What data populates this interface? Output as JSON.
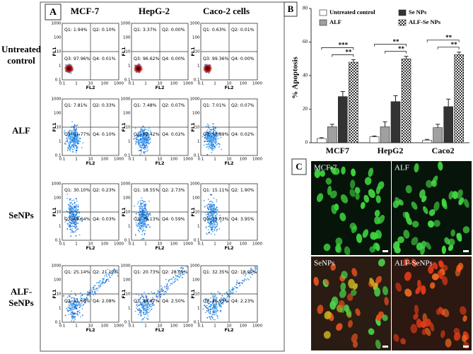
{
  "panel_labels": [
    "A",
    "B",
    "C"
  ],
  "panel_a": {
    "columns": [
      "MCF-7",
      "HepG-2",
      "Caco-2 cells"
    ],
    "x_label": "FL2",
    "y_label": "FL1",
    "axis_ticks": [
      "0.1",
      "1",
      "10",
      "100",
      "1000"
    ],
    "rows": [
      {
        "label": "Untreated control",
        "plots": [
          {
            "q1": "Q1: 1.94%",
            "q2": "Q2: 0.10%",
            "q3": "Q3: 97.96%",
            "q4": "Q4: 0.01%"
          },
          {
            "q1": "Q1: 3.37%",
            "q2": "Q2: 0.00%",
            "q3": "Q3: 96.62%",
            "q4": "Q4: 0.00%"
          },
          {
            "q1": "Q1: 0.63%",
            "q2": "Q2: 0.01%",
            "q3": "Q3: 99.36%",
            "q4": "Q4: 0.00%"
          }
        ]
      },
      {
        "label": "ALF",
        "plots": [
          {
            "q1": "Q1: 7.81%",
            "q2": "Q2: 0.33%",
            "q3": "Q3: 91.77%",
            "q4": "Q4: 0.10%"
          },
          {
            "q1": "Q1: 7.48%",
            "q2": "Q2: 0.07%",
            "q3": "Q3: 92.42%",
            "q4": "Q4: 0.02%"
          },
          {
            "q1": "Q1: 7.01%",
            "q2": "Q2: 0.07%",
            "q3": "Q3: 92.89%",
            "q4": "Q4: 0.02%"
          }
        ]
      },
      {
        "label": "SeNPs",
        "plots": [
          {
            "q1": "Q1: 30.10%",
            "q2": "Q2: 0.23%",
            "q3": "Q3: 69.64%",
            "q4": "Q4: 0.03%"
          },
          {
            "q1": "Q1: 18.55%",
            "q2": "Q2: 2.73%",
            "q3": "Q3: 78.13%",
            "q4": "Q4: 0.59%"
          },
          {
            "q1": "Q1: 15.11%",
            "q2": "Q2: 1.90%",
            "q3": "Q3: 79.03%",
            "q4": "Q4: 3.95%"
          }
        ]
      },
      {
        "label": "ALF-SeNPs",
        "plots": [
          {
            "q1": "Q1: 25.14%",
            "q2": "Q2: 21.12%",
            "q3": "Q3: 51.66%",
            "q4": "Q4: 2.08%"
          },
          {
            "q1": "Q1: 20.73%",
            "q2": "Q2: 28.09%",
            "q3": "Q3: 48.67%",
            "q4": "Q4: 2.50%"
          },
          {
            "q1": "Q1: 32.35%",
            "q2": "Q2: 18.90%",
            "q3": "Q3: 46.53%",
            "q4": "Q4: 2.23%"
          }
        ]
      }
    ]
  },
  "chart_data": {
    "type": "bar",
    "y_label": "% Apoptosis",
    "categories": [
      "MCF7",
      "HepG2",
      "Caco2"
    ],
    "series": [
      {
        "name": "Untreated control",
        "color": "#ffffff",
        "values": [
          2.5,
          3.5,
          1.5
        ],
        "errors": [
          0.5,
          0.5,
          0.5
        ]
      },
      {
        "name": "ALF",
        "color": "#a0a0a0",
        "values": [
          9.5,
          9.5,
          9
        ],
        "errors": [
          1.5,
          3,
          2
        ]
      },
      {
        "name": "Se NPs",
        "color": "#333333",
        "values": [
          27.5,
          24.5,
          21.5
        ],
        "errors": [
          3,
          3.5,
          4.5
        ]
      },
      {
        "name": "ALF-Se NPs",
        "color": "#333333",
        "pattern": "checker",
        "values": [
          48,
          50,
          52.5
        ],
        "errors": [
          1.5,
          1.5,
          1.5
        ]
      }
    ],
    "significance": [
      [
        "***",
        "**"
      ],
      [
        "**",
        "**"
      ],
      [
        "**",
        "**"
      ]
    ],
    "ylim": [
      0,
      80
    ],
    "yticks": [
      0,
      20,
      40,
      60,
      80
    ]
  },
  "panel_c": {
    "images": [
      "MCF-7",
      "ALF",
      "SeNPs",
      "ALF-SeNPs"
    ]
  }
}
